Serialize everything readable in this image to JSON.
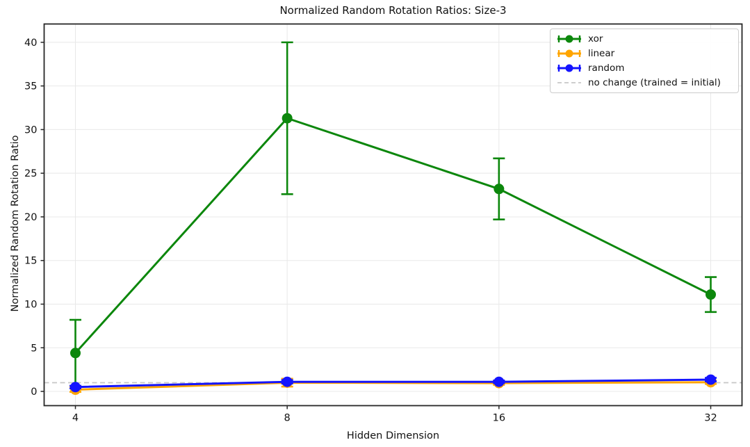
{
  "chart_data": {
    "type": "line",
    "title": "Normalized Random Rotation Ratios: Size-3",
    "xlabel": "Hidden Dimension",
    "ylabel": "Normalized Random Rotation Ratio",
    "categories": [
      "4",
      "8",
      "16",
      "32"
    ],
    "series": [
      {
        "name": "xor",
        "color": "#0c870c",
        "values": [
          4.4,
          31.3,
          23.2,
          11.1
        ],
        "yerr": [
          3.8,
          8.7,
          3.5,
          2.0
        ]
      },
      {
        "name": "linear",
        "color": "#ffa500",
        "values": [
          0.2,
          1.0,
          0.95,
          1.05
        ],
        "yerr": [
          0.25,
          0.45,
          0.2,
          0.2
        ]
      },
      {
        "name": "random",
        "color": "#1414ff",
        "values": [
          0.5,
          1.1,
          1.1,
          1.35
        ],
        "yerr": [
          0.15,
          0.2,
          0.15,
          0.2
        ]
      }
    ],
    "reference_line": {
      "label": "no change (trained = initial)",
      "value": 1.0,
      "color": "#c6c6c6",
      "style": "dashed"
    },
    "yticks": [
      0,
      5,
      10,
      15,
      20,
      25,
      30,
      35,
      40
    ],
    "ylim": [
      -1.63,
      42.1
    ],
    "grid": true,
    "legend_position": "top-right",
    "legend_labels": [
      "xor",
      "linear",
      "random",
      "no change (trained = initial)"
    ],
    "colors": {
      "grid": "#e8e8e8",
      "spine": "#262626",
      "text": "#111111",
      "background": "#ffffff"
    }
  }
}
